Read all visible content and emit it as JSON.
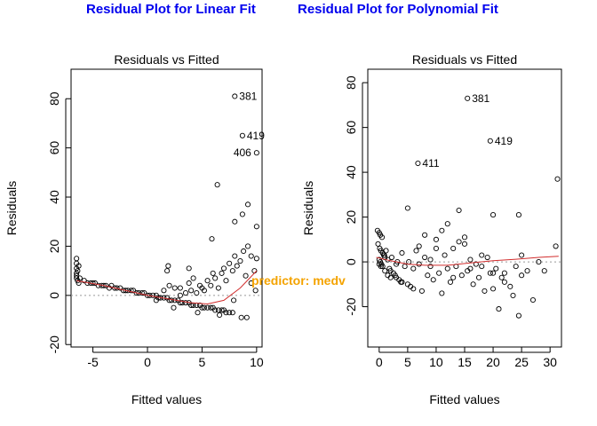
{
  "headings": {
    "left": "Residual Plot for Linear Fit",
    "right": "Residual Plot for Polynomial Fit",
    "color": "#0000ee"
  },
  "overlay_label": {
    "text": "predictor: medv",
    "color": "#f4a300"
  },
  "chart_data": [
    {
      "type": "scatter",
      "title": "Residuals vs Fitted",
      "xlabel": "Fitted values",
      "ylabel": "Residuals",
      "xlim": [
        -7,
        10.5
      ],
      "ylim": [
        -21,
        92
      ],
      "xticks": [
        -5,
        0,
        5,
        10
      ],
      "yticks": [
        -20,
        0,
        20,
        40,
        60,
        80
      ],
      "point_color": "#000000",
      "smooth_color": "#d22d2d",
      "zero_line": 0,
      "labeled_points": [
        {
          "label": "381",
          "x": 8.0,
          "y": 81
        },
        {
          "label": "419",
          "x": 8.7,
          "y": 65
        },
        {
          "label": "406",
          "x": 10.0,
          "y": 58
        }
      ],
      "points": [
        [
          -6.5,
          15
        ],
        [
          -6.5,
          13
        ],
        [
          -6.5,
          11
        ],
        [
          -6.5,
          9
        ],
        [
          -6.5,
          8
        ],
        [
          -6.5,
          7
        ],
        [
          -6.4,
          6
        ],
        [
          -6.4,
          10
        ],
        [
          -6.3,
          12
        ],
        [
          -6.3,
          5
        ],
        [
          -6.2,
          7
        ],
        [
          -5.8,
          6
        ],
        [
          -5.5,
          5
        ],
        [
          -5.2,
          5
        ],
        [
          -5,
          5
        ],
        [
          -4.8,
          5
        ],
        [
          -4.5,
          4
        ],
        [
          -4.2,
          4
        ],
        [
          -4,
          4
        ],
        [
          -3.8,
          4
        ],
        [
          -3.5,
          3
        ],
        [
          -3.3,
          4
        ],
        [
          -3,
          3
        ],
        [
          -2.8,
          3
        ],
        [
          -2.5,
          3
        ],
        [
          -2.2,
          2
        ],
        [
          -2,
          2
        ],
        [
          -1.8,
          2
        ],
        [
          -1.5,
          2
        ],
        [
          -1.3,
          2
        ],
        [
          -1,
          1
        ],
        [
          -0.8,
          1
        ],
        [
          -0.5,
          1
        ],
        [
          -0.3,
          1
        ],
        [
          0,
          0
        ],
        [
          0.2,
          0
        ],
        [
          0.5,
          0
        ],
        [
          0.8,
          0
        ],
        [
          1,
          -1
        ],
        [
          1.2,
          -1
        ],
        [
          1.5,
          -1
        ],
        [
          1.8,
          -1
        ],
        [
          2,
          -2
        ],
        [
          2.2,
          -2
        ],
        [
          2.5,
          -2
        ],
        [
          2.8,
          -2
        ],
        [
          3,
          -3
        ],
        [
          3.2,
          -3
        ],
        [
          3.5,
          -3
        ],
        [
          3.8,
          -3
        ],
        [
          4,
          -4
        ],
        [
          4.2,
          -4
        ],
        [
          4.5,
          -4
        ],
        [
          4.8,
          -4
        ],
        [
          5,
          -5
        ],
        [
          5.2,
          -5
        ],
        [
          5.5,
          -5
        ],
        [
          5.8,
          -5
        ],
        [
          6,
          -5
        ],
        [
          6.2,
          -6
        ],
        [
          6.5,
          -6
        ],
        [
          6.8,
          -6
        ],
        [
          7,
          -6
        ],
        [
          7.2,
          -7
        ],
        [
          7.5,
          -7
        ],
        [
          7.8,
          -7
        ],
        [
          1.5,
          2
        ],
        [
          2,
          4
        ],
        [
          2.5,
          3
        ],
        [
          3,
          3
        ],
        [
          3,
          0
        ],
        [
          3.5,
          1
        ],
        [
          3.8,
          5
        ],
        [
          4,
          2
        ],
        [
          4.2,
          7
        ],
        [
          4.5,
          1
        ],
        [
          4.8,
          4
        ],
        [
          5,
          3
        ],
        [
          5.2,
          2
        ],
        [
          5.5,
          6
        ],
        [
          5.8,
          4
        ],
        [
          6,
          9
        ],
        [
          6.2,
          7
        ],
        [
          6.5,
          3
        ],
        [
          6.8,
          9
        ],
        [
          7,
          11
        ],
        [
          7.2,
          6
        ],
        [
          7.5,
          13
        ],
        [
          7.8,
          10
        ],
        [
          8,
          16
        ],
        [
          8.2,
          12
        ],
        [
          8.5,
          14
        ],
        [
          8.8,
          18
        ],
        [
          9,
          8
        ],
        [
          9.2,
          20
        ],
        [
          9.5,
          16
        ],
        [
          9.8,
          10
        ],
        [
          10,
          15
        ],
        [
          1.8,
          10
        ],
        [
          1.9,
          12
        ],
        [
          3.8,
          11
        ],
        [
          5.9,
          23
        ],
        [
          8,
          30
        ],
        [
          8.7,
          33
        ],
        [
          9.2,
          37
        ],
        [
          10,
          28
        ],
        [
          6.4,
          45
        ],
        [
          8.6,
          -9
        ],
        [
          9.1,
          -9
        ],
        [
          2.4,
          -5
        ],
        [
          4.6,
          -7
        ],
        [
          6.6,
          -8
        ],
        [
          7.9,
          -2
        ],
        [
          9.5,
          5
        ],
        [
          9.9,
          2
        ],
        [
          0.8,
          -2
        ]
      ],
      "smooth": [
        [
          -6.5,
          6
        ],
        [
          -4,
          4
        ],
        [
          -2,
          2
        ],
        [
          0,
          0
        ],
        [
          2,
          -1.5
        ],
        [
          4,
          -3
        ],
        [
          5.5,
          -3.5
        ],
        [
          7,
          -2
        ],
        [
          8.5,
          3
        ],
        [
          10,
          10
        ]
      ]
    },
    {
      "type": "scatter",
      "title": "Residuals vs Fitted",
      "xlabel": "Fitted values",
      "ylabel": "Residuals",
      "xlim": [
        -2,
        32
      ],
      "ylim": [
        -38,
        86
      ],
      "xticks": [
        0,
        5,
        10,
        15,
        20,
        25,
        30
      ],
      "yticks": [
        -20,
        0,
        20,
        40,
        60,
        80
      ],
      "point_color": "#000000",
      "smooth_color": "#d22d2d",
      "zero_line": 0,
      "labeled_points": [
        {
          "label": "381",
          "x": 15.5,
          "y": 73
        },
        {
          "label": "419",
          "x": 19.5,
          "y": 54
        },
        {
          "label": "411",
          "x": 6.8,
          "y": 44
        }
      ],
      "points": [
        [
          -0.3,
          14
        ],
        [
          0,
          13
        ],
        [
          0.2,
          12
        ],
        [
          0.5,
          11
        ],
        [
          -0.2,
          8
        ],
        [
          0.1,
          6
        ],
        [
          0.3,
          5
        ],
        [
          0.6,
          4
        ],
        [
          0.8,
          3
        ],
        [
          1,
          2
        ],
        [
          0,
          1
        ],
        [
          0.2,
          0
        ],
        [
          0.4,
          -1
        ],
        [
          0.6,
          -2
        ],
        [
          0.9,
          3
        ],
        [
          1.2,
          5
        ],
        [
          1.5,
          1
        ],
        [
          1.8,
          -3
        ],
        [
          2,
          -4
        ],
        [
          2.2,
          2
        ],
        [
          2.5,
          -5
        ],
        [
          2.8,
          -6
        ],
        [
          3,
          -7
        ],
        [
          3.2,
          0
        ],
        [
          3.5,
          -8
        ],
        [
          3.8,
          -9
        ],
        [
          4,
          4
        ],
        [
          4.5,
          -2
        ],
        [
          5,
          -10
        ],
        [
          5.2,
          0
        ],
        [
          5.5,
          -11
        ],
        [
          6,
          -12
        ],
        [
          6.5,
          5
        ],
        [
          7,
          -1
        ],
        [
          7.5,
          -13
        ],
        [
          8,
          2
        ],
        [
          8.5,
          -6
        ],
        [
          9,
          1
        ],
        [
          9.5,
          -8
        ],
        [
          10,
          6
        ],
        [
          10.5,
          -5
        ],
        [
          11,
          -14
        ],
        [
          11.5,
          3
        ],
        [
          12,
          -3
        ],
        [
          12.5,
          -9
        ],
        [
          13,
          6
        ],
        [
          13.5,
          -2
        ],
        [
          14,
          9
        ],
        [
          14.5,
          -6
        ],
        [
          15,
          11
        ],
        [
          15.5,
          -4
        ],
        [
          16,
          1
        ],
        [
          16.5,
          -10
        ],
        [
          17,
          -1
        ],
        [
          17.5,
          -7
        ],
        [
          18,
          3
        ],
        [
          18.5,
          -13
        ],
        [
          19,
          2
        ],
        [
          19.5,
          -5
        ],
        [
          20,
          -12
        ],
        [
          20.5,
          -3
        ],
        [
          21,
          -21
        ],
        [
          21.5,
          -7
        ],
        [
          22,
          -9
        ],
        [
          23,
          -11
        ],
        [
          23.5,
          -15
        ],
        [
          24,
          -2
        ],
        [
          24.5,
          -24
        ],
        [
          25,
          3
        ],
        [
          26,
          -4
        ],
        [
          27,
          -17
        ],
        [
          28,
          0
        ],
        [
          29,
          -4
        ],
        [
          31,
          7
        ],
        [
          31.3,
          37
        ],
        [
          5,
          24
        ],
        [
          8,
          12
        ],
        [
          10,
          10
        ],
        [
          12,
          17
        ],
        [
          14,
          23
        ],
        [
          15,
          8
        ],
        [
          20,
          21
        ],
        [
          24.5,
          21
        ],
        [
          0,
          -1
        ],
        [
          0.3,
          -2
        ],
        [
          1,
          -4
        ],
        [
          1.5,
          -6
        ],
        [
          2,
          -7
        ],
        [
          3,
          -1
        ],
        [
          4,
          -9
        ],
        [
          6,
          -3
        ],
        [
          7,
          7
        ],
        [
          9,
          -2
        ],
        [
          11,
          14
        ],
        [
          13,
          -7
        ],
        [
          16,
          -3
        ],
        [
          18,
          -2
        ],
        [
          20,
          -5
        ],
        [
          22,
          -5
        ],
        [
          25,
          -6
        ]
      ],
      "smooth": [
        [
          -0.5,
          2
        ],
        [
          2,
          0.5
        ],
        [
          5,
          -1
        ],
        [
          8,
          -1.5
        ],
        [
          12,
          -1.5
        ],
        [
          16,
          -0.5
        ],
        [
          20,
          0.5
        ],
        [
          24,
          1.2
        ],
        [
          28,
          2
        ],
        [
          31.5,
          2.5
        ]
      ]
    }
  ]
}
